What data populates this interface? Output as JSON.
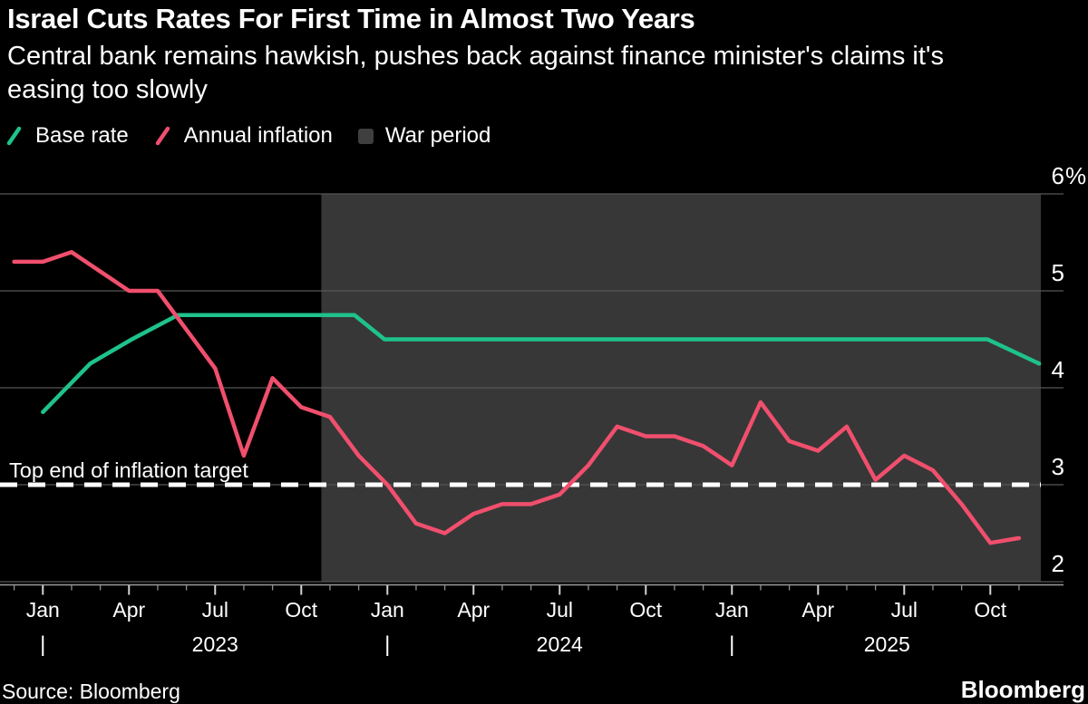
{
  "header": {
    "title": "Israel Cuts Rates For First Time in Almost Two Years",
    "subtitle_line1": "Central bank remains hawkish, pushes back against finance minister's claims it's",
    "subtitle_line2": "easing too slowly"
  },
  "legend": {
    "items": [
      {
        "label": "Base rate",
        "type": "line",
        "color": "#1fc28c"
      },
      {
        "label": "Annual inflation",
        "type": "line",
        "color": "#f04f6d"
      },
      {
        "label": "War period",
        "type": "box",
        "color": "#3f3f3f"
      }
    ]
  },
  "footer": {
    "source": "Source: Bloomberg",
    "logo": "Bloomberg"
  },
  "chart_data": {
    "type": "line",
    "title": "Israel Cuts Rates For First Time in Almost Two Years",
    "unit": "%",
    "ylim": [
      2,
      6
    ],
    "grid": true,
    "y_axis": {
      "ticks": [
        6,
        5,
        4,
        3,
        2
      ],
      "top_label_suffix": "%"
    },
    "x_axis": {
      "start_month": "Dec 2022",
      "end_month": "Nov 2025",
      "months_total": 36,
      "month_tick_labels": [
        "Jan",
        "Apr",
        "Jul",
        "Oct"
      ],
      "years": [
        {
          "label": "2023",
          "divider_m": 1,
          "center_m": 7
        },
        {
          "label": "2024",
          "divider_m": 13,
          "center_m": 19
        },
        {
          "label": "2025",
          "divider_m": 25,
          "center_m": 30.4
        }
      ]
    },
    "target_line": {
      "label": "Top end of inflation target",
      "value": 3,
      "style": "dashed",
      "color": "#ffffff"
    },
    "war_period": {
      "label": "War period",
      "start_m": 10.7,
      "end_m": 35.72,
      "fill": "#373737"
    },
    "series": [
      {
        "name": "Base rate",
        "color": "#1fc28c",
        "points_mv": [
          [
            1,
            3.75
          ],
          [
            2.65,
            4.25
          ],
          [
            4.1,
            4.5
          ],
          [
            5.7,
            4.75
          ],
          [
            11.85,
            4.75
          ],
          [
            12.9,
            4.5
          ],
          [
            33.9,
            4.5
          ],
          [
            35.7,
            4.25
          ]
        ]
      },
      {
        "name": "Annual inflation",
        "color": "#f04f6d",
        "start_m": 0,
        "monthly_values": [
          5.3,
          5.3,
          5.4,
          5.2,
          5.0,
          5.0,
          4.6,
          4.2,
          3.3,
          4.1,
          3.8,
          3.7,
          3.3,
          3.0,
          2.6,
          2.5,
          2.7,
          2.8,
          2.8,
          2.9,
          3.2,
          3.6,
          3.5,
          3.5,
          3.4,
          3.2,
          3.85,
          3.45,
          3.35,
          3.6,
          3.05,
          3.3,
          3.15,
          2.8,
          2.4,
          2.45
        ]
      }
    ]
  }
}
